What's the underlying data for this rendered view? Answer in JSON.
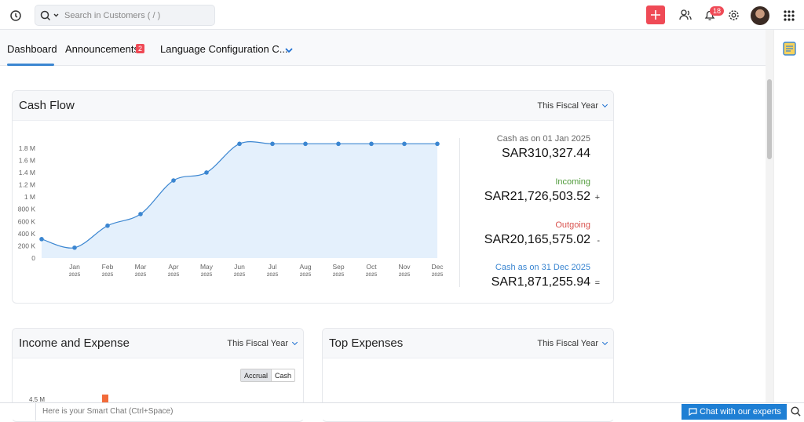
{
  "header": {
    "search_placeholder": "Search in Customers ( / )",
    "notification_count": 18
  },
  "tabs": [
    {
      "label": "Dashboard"
    },
    {
      "label": "Announcements",
      "badge": 2
    },
    {
      "label": "Language Configuration C..."
    }
  ],
  "cash_flow": {
    "title": "Cash Flow",
    "period": "This Fiscal Year",
    "chart_data": {
      "type": "line",
      "fill": true,
      "color": "#3b86d1",
      "area_color": "#e4f0fc",
      "grid": false,
      "categories": [
        null,
        "Jan 2025",
        "Feb 2025",
        "Mar 2025",
        "Apr 2025",
        "May 2025",
        "Jun 2025",
        "Jul 2025",
        "Aug 2025",
        "Sep 2025",
        "Oct 2025",
        "Nov 2025",
        "Dec 2025"
      ],
      "values": [
        310000,
        170000,
        530000,
        720000,
        1270000,
        1400000,
        1870000,
        1870000,
        1870000,
        1870000,
        1870000,
        1870000,
        1870000
      ],
      "ylim": [
        0,
        1900000
      ],
      "yticks": [
        0,
        {
          "value": 200000,
          "label": "200 K"
        },
        {
          "value": 400000,
          "label": "400 K"
        },
        {
          "value": 600000,
          "label": "600 K"
        },
        {
          "value": 800000,
          "label": "800 K"
        },
        {
          "value": 1000000,
          "label": "1 M"
        },
        {
          "value": 1200000,
          "label": "1.2 M"
        },
        {
          "value": 1400000,
          "label": "1.4 M"
        },
        {
          "value": 1600000,
          "label": "1.6 M"
        },
        {
          "value": 1800000,
          "label": "1.8 M"
        }
      ]
    },
    "summary": [
      {
        "label": "Cash as on 01 Jan 2025",
        "amount": "SAR310,327.44"
      },
      {
        "label": "Incoming",
        "amount": "SAR21,726,503.52",
        "operator": "+"
      },
      {
        "label": "Outgoing",
        "amount": "SAR20,165,575.02",
        "operator": "-"
      },
      {
        "label": "Cash as on 31 Dec 2025",
        "amount": "SAR1,871,255.94",
        "operator": "="
      }
    ]
  },
  "income_expense": {
    "title": "Income and Expense",
    "period": "This Fiscal Year",
    "toggle": [
      "Accrual",
      "Cash"
    ],
    "y_label": "4.5 M"
  },
  "top_expenses": {
    "title": "Top Expenses",
    "period": "This Fiscal Year"
  },
  "footer": {
    "chat_placeholder": "Here is your Smart Chat (Ctrl+Space)",
    "button": "Chat with our experts"
  }
}
